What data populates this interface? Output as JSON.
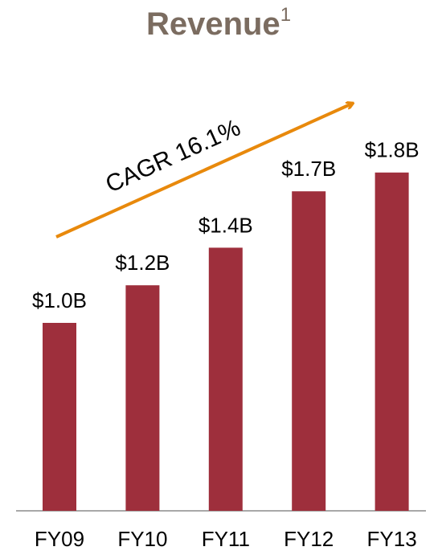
{
  "chart_data": {
    "type": "bar",
    "title": "Revenue",
    "title_superscript": "1",
    "annotation": "CAGR 16.1%",
    "categories": [
      "FY09",
      "FY10",
      "FY11",
      "FY12",
      "FY13"
    ],
    "values": [
      1.0,
      1.2,
      1.4,
      1.7,
      1.8
    ],
    "value_labels": [
      "$1.0B",
      "$1.2B",
      "$1.4B",
      "$1.7B",
      "$1.8B"
    ],
    "color": "#9e2f3c",
    "arrow_color": "#e8890c"
  }
}
